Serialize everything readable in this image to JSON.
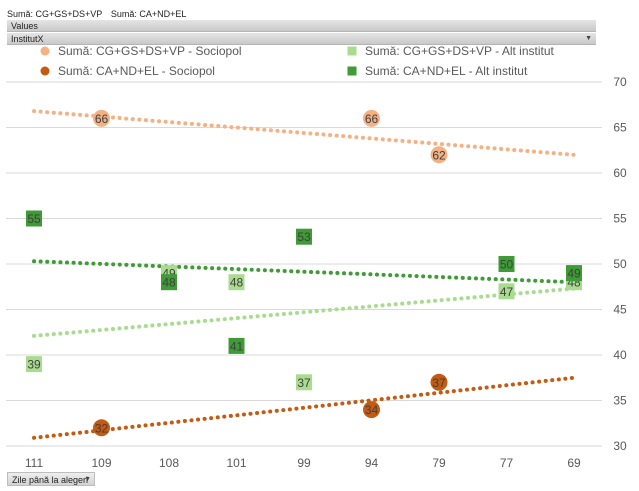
{
  "pivot": {
    "value_fields": [
      "Sumă: CG+GS+DS+VP",
      "Sumă: CA+ND+EL"
    ],
    "values_label": "Values",
    "legend_field": "InstitutX",
    "axis_field": "Zile până la alegeri"
  },
  "colors": {
    "sociopol_cg": "#f4b183",
    "sociopol_ca": "#c55a11",
    "alt_cg": "#a9dc8f",
    "alt_ca": "#3e9b35",
    "grid": "#d9d9d9"
  },
  "chart_data": {
    "type": "scatter",
    "categories": [
      "111",
      "109",
      "108",
      "101",
      "99",
      "94",
      "79",
      "77",
      "69"
    ],
    "ylim": [
      30,
      70
    ],
    "yticks": [
      30,
      35,
      40,
      45,
      50,
      55,
      60,
      65,
      70
    ],
    "grid": true,
    "legend_position": "top",
    "series": [
      {
        "name": "Sumă: CG+GS+DS+VP - Sociopol",
        "marker": "circle",
        "color": "#f4b183",
        "points": [
          {
            "x": "109",
            "y": 66
          },
          {
            "x": "94",
            "y": 66
          },
          {
            "x": "79",
            "y": 62
          }
        ],
        "trendline": [
          66.8,
          62.0
        ]
      },
      {
        "name": "Sumă: CG+GS+DS+VP - Alt institut",
        "marker": "square",
        "color": "#a9dc8f",
        "points": [
          {
            "x": "111",
            "y": 39
          },
          {
            "x": "108",
            "y": 49
          },
          {
            "x": "101",
            "y": 48
          },
          {
            "x": "99",
            "y": 37
          },
          {
            "x": "77",
            "y": 47
          },
          {
            "x": "69",
            "y": 48
          }
        ],
        "trendline": [
          42.1,
          47.3
        ]
      },
      {
        "name": "Sumă: CA+ND+EL - Sociopol",
        "marker": "circle",
        "color": "#c55a11",
        "points": [
          {
            "x": "109",
            "y": 32
          },
          {
            "x": "94",
            "y": 34
          },
          {
            "x": "79",
            "y": 37
          }
        ],
        "trendline": [
          30.9,
          37.5
        ]
      },
      {
        "name": "Sumă: CA+ND+EL - Alt institut",
        "marker": "square",
        "color": "#3e9b35",
        "points": [
          {
            "x": "111",
            "y": 55
          },
          {
            "x": "108",
            "y": 48
          },
          {
            "x": "101",
            "y": 41
          },
          {
            "x": "99",
            "y": 53
          },
          {
            "x": "77",
            "y": 50
          },
          {
            "x": "69",
            "y": 49
          }
        ],
        "trendline": [
          50.3,
          48.0
        ]
      }
    ]
  }
}
